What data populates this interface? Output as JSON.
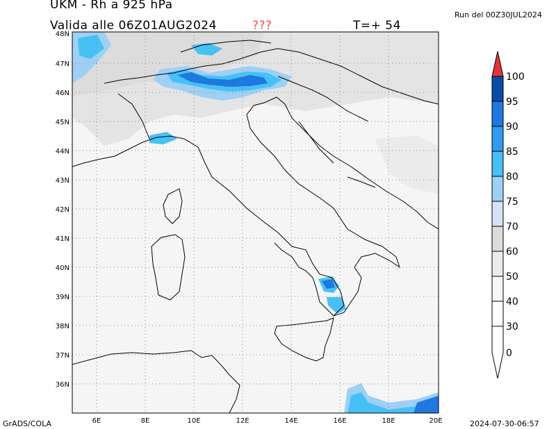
{
  "header": {
    "title": "UKM - Rh a 925 hPa",
    "valid_label": "Valida alle 06Z01AUG2024",
    "unknown": "???",
    "forecast_step": "T=+ 54",
    "run_label": "Run del 00Z30JUL2024"
  },
  "footer": {
    "software": "GrADS/COLA",
    "timestamp": "2024-07-30-06:57"
  },
  "map": {
    "lat_labels": [
      "48N",
      "47N",
      "46N",
      "45N",
      "44N",
      "43N",
      "42N",
      "41N",
      "40N",
      "39N",
      "38N",
      "37N",
      "36N"
    ],
    "lon_labels": [
      "6E",
      "8E",
      "10E",
      "12E",
      "14E",
      "16E",
      "18E",
      "20E"
    ]
  },
  "colorbar": {
    "levels": [
      "100",
      "95",
      "90",
      "85",
      "80",
      "75",
      "70",
      "60",
      "50",
      "40",
      "30",
      "0"
    ],
    "colors": {
      "100": "#e63333",
      "95": "#0a4ba8",
      "90": "#1e78e0",
      "85": "#2e9af0",
      "80": "#46c1f5",
      "75": "#9ed0f5",
      "70": "#d6e0f8",
      "60": "#dcdcdc",
      "50": "#ebebeb",
      "40": "#f6f6f6",
      "30": "#ffffff",
      "0": "#ffffff"
    }
  }
}
